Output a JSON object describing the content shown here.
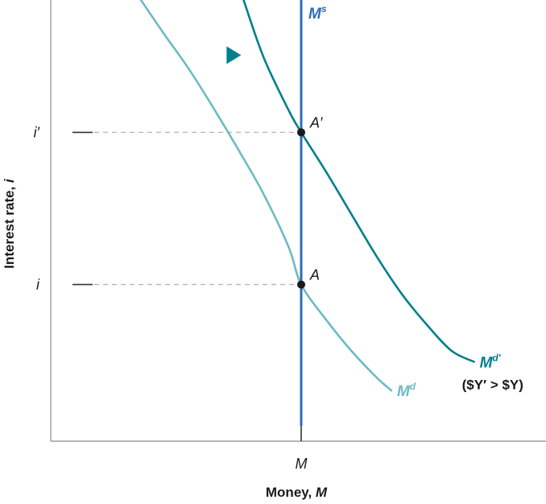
{
  "chart_data": {
    "type": "line",
    "xlabel_text": "Money, ",
    "xlabel_var": "M",
    "ylabel_text": "Interest rate, ",
    "ylabel_var": "i",
    "x_ticks": [
      {
        "value": 1.0,
        "label": "M"
      }
    ],
    "y_ticks": [
      {
        "value": 0.355,
        "label": "i"
      },
      {
        "value": 0.7,
        "label": "i′"
      }
    ],
    "xlim": [
      0,
      2.0
    ],
    "ylim": [
      0,
      1.0
    ],
    "grid": false,
    "series": [
      {
        "name": "Md",
        "label_main": "M",
        "label_sup": "d",
        "color": "#6bbcc4",
        "x": [
          0.36,
          0.45,
          0.55,
          0.65,
          0.75,
          0.85,
          0.95,
          1.0,
          1.1,
          1.2,
          1.3,
          1.36
        ],
        "y": [
          1.0,
          0.925,
          0.845,
          0.755,
          0.66,
          0.56,
          0.44,
          0.355,
          0.275,
          0.205,
          0.145,
          0.115
        ]
      },
      {
        "name": "Md′",
        "label_main": "M",
        "label_sup": "d′",
        "label_note": "($Y′ > $Y)",
        "color": "#00808c",
        "x": [
          0.77,
          0.85,
          0.95,
          1.0,
          1.1,
          1.2,
          1.3,
          1.4,
          1.5,
          1.6,
          1.69
        ],
        "y": [
          1.0,
          0.87,
          0.75,
          0.7,
          0.61,
          0.515,
          0.42,
          0.335,
          0.265,
          0.205,
          0.18
        ]
      },
      {
        "name": "Ms",
        "label_main": "M",
        "label_sup": "s",
        "color": "#2f6db5",
        "x": [
          1.0,
          1.0
        ],
        "y": [
          0.0,
          1.0
        ]
      }
    ],
    "points": [
      {
        "label": "A",
        "x": 1.0,
        "y": 0.355
      },
      {
        "label": "A′",
        "x": 1.0,
        "y": 0.7
      }
    ],
    "annotations": [
      {
        "type": "shift-arrow",
        "direction": "right",
        "from": [
          0.45,
          0.875
        ],
        "to": [
          0.76,
          0.875
        ],
        "color": "#00808c"
      }
    ]
  }
}
